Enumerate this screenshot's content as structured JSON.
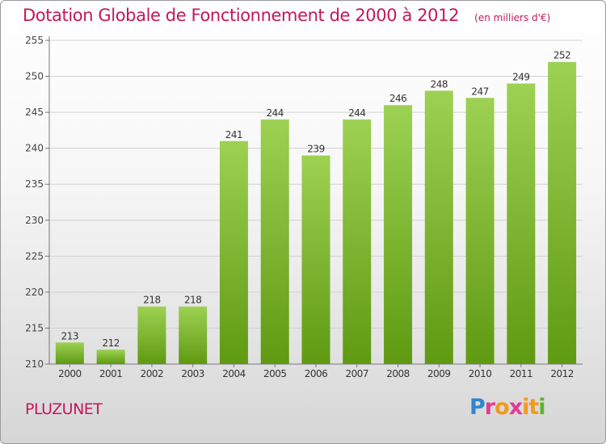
{
  "title": "Dotation Globale de Fonctionnement de 2000 à 2012",
  "subtitle": "(en milliers d'€)",
  "commune": "PLUZUNET",
  "logo": {
    "letters": [
      "P",
      "r",
      "o",
      "x",
      "i",
      "t",
      "i"
    ],
    "colors": [
      "#2e86d1",
      "#e03c96",
      "#f29a1c",
      "#e03c96",
      "#f29a1c",
      "#f29a1c",
      "#5bb431"
    ]
  },
  "colors": {
    "bar_top": "#9dd153",
    "bar_bottom": "#5f9a12",
    "title": "#c2185b"
  },
  "chart_data": {
    "type": "bar",
    "categories": [
      "2000",
      "2001",
      "2002",
      "2003",
      "2004",
      "2005",
      "2006",
      "2007",
      "2008",
      "2009",
      "2010",
      "2011",
      "2012"
    ],
    "values": [
      213,
      212,
      218,
      218,
      241,
      244,
      239,
      244,
      246,
      248,
      247,
      249,
      252
    ],
    "ylim": [
      210,
      255
    ],
    "yticks": [
      210,
      215,
      220,
      225,
      230,
      235,
      240,
      245,
      250,
      255
    ],
    "grid": true
  }
}
